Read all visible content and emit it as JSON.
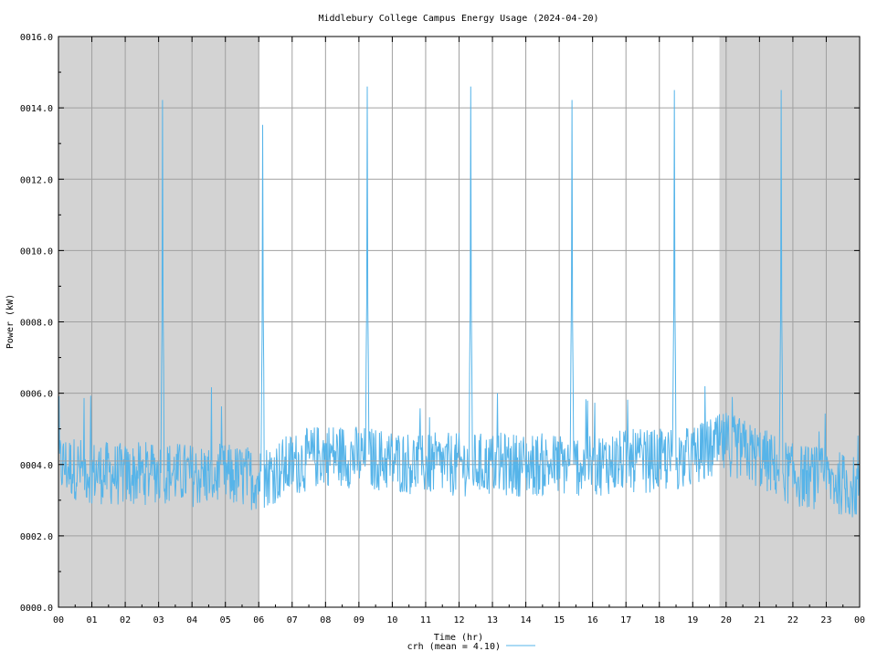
{
  "chart_data": {
    "type": "line",
    "title": "Middlebury College Campus Energy Usage (2024-04-20)",
    "xlabel": "Time (hr)",
    "ylabel": "Power (kW)",
    "xlim": [
      0,
      24
    ],
    "ylim": [
      0,
      16
    ],
    "grid": true,
    "legend": "bottom-center",
    "x_ticks": [
      0,
      1,
      2,
      3,
      4,
      5,
      6,
      7,
      8,
      9,
      10,
      11,
      12,
      13,
      14,
      15,
      16,
      17,
      18,
      19,
      20,
      21,
      22,
      23,
      24
    ],
    "x_tick_labels": [
      "00",
      "01",
      "02",
      "03",
      "04",
      "05",
      "06",
      "07",
      "08",
      "09",
      "10",
      "11",
      "12",
      "13",
      "14",
      "15",
      "16",
      "17",
      "18",
      "19",
      "20",
      "21",
      "22",
      "23",
      "00"
    ],
    "y_ticks": [
      0,
      2,
      4,
      6,
      8,
      10,
      12,
      14,
      16
    ],
    "y_tick_labels": [
      "0000.0",
      "0002.0",
      "0004.0",
      "0006.0",
      "0008.0",
      "0010.0",
      "0012.0",
      "0014.0",
      "0016.0"
    ],
    "shaded_ranges": [
      [
        0,
        6
      ],
      [
        19.8,
        24
      ]
    ],
    "shade_color": "#d3d3d3",
    "mean_line": 4.1,
    "series": [
      {
        "name": "crh (mean = 4.10)",
        "color": "#56b4e9",
        "spikes": [
          {
            "x": 3.12,
            "y": 14.5
          },
          {
            "x": 6.12,
            "y": 13.8
          },
          {
            "x": 9.25,
            "y": 14.6
          },
          {
            "x": 12.35,
            "y": 14.6
          },
          {
            "x": 15.38,
            "y": 14.5
          },
          {
            "x": 18.45,
            "y": 14.5
          },
          {
            "x": 21.65,
            "y": 14.5
          }
        ],
        "baseline_profile": [
          [
            0,
            4.0
          ],
          [
            1,
            3.8
          ],
          [
            2,
            3.7
          ],
          [
            3,
            3.8
          ],
          [
            4,
            3.7
          ],
          [
            5,
            3.7
          ],
          [
            6,
            3.6
          ],
          [
            7,
            4.0
          ],
          [
            8,
            4.3
          ],
          [
            9,
            4.2
          ],
          [
            10,
            4.1
          ],
          [
            11,
            4.0
          ],
          [
            12,
            4.0
          ],
          [
            13,
            4.0
          ],
          [
            14,
            4.0
          ],
          [
            15,
            4.0
          ],
          [
            16,
            4.0
          ],
          [
            17,
            4.1
          ],
          [
            18,
            4.1
          ],
          [
            19,
            4.2
          ],
          [
            20,
            4.6
          ],
          [
            21,
            4.2
          ],
          [
            22,
            3.7
          ],
          [
            23,
            3.6
          ],
          [
            24,
            3.3
          ]
        ],
        "amplitude": 0.9
      }
    ]
  }
}
